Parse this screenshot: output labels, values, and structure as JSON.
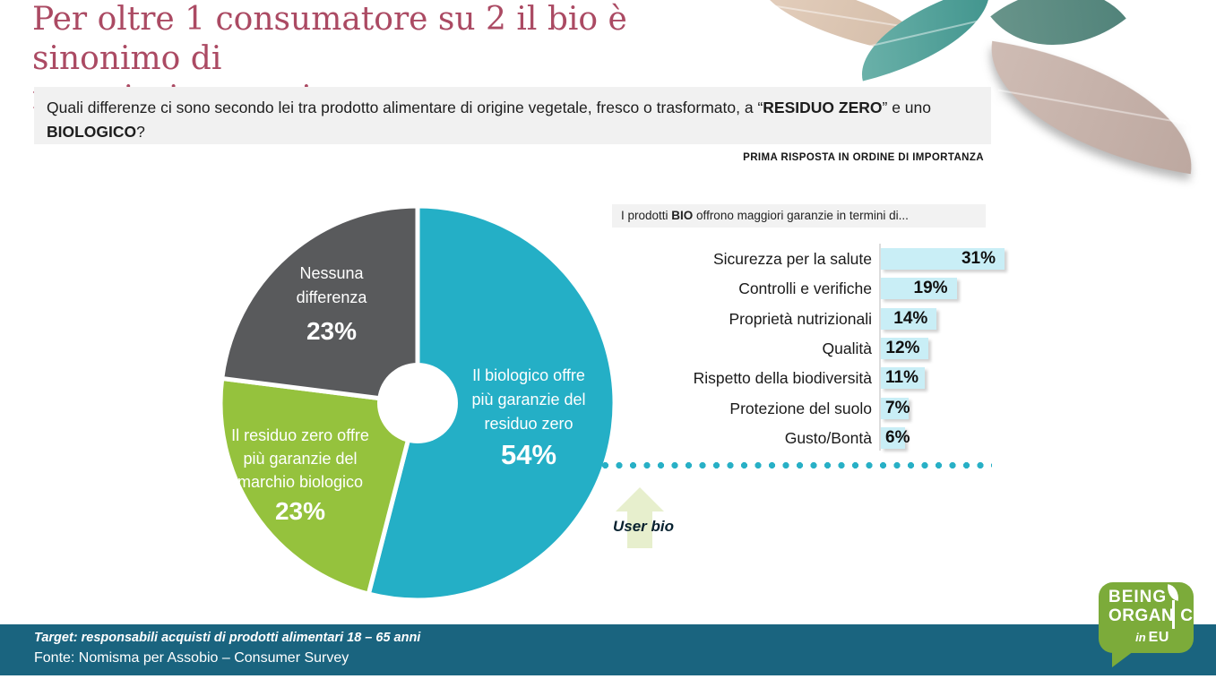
{
  "header": {
    "title_line1": "Per oltre 1 consumatore su 2 il  bio è sinonimo di",
    "title_line2": "maggiori garanzie",
    "question_part1": "Quali differenze ci sono secondo lei tra prodotto alimentare di origine vegetale, fresco o trasformato, a “",
    "question_bold1": "RESIDUO ZERO",
    "question_part2": "” e uno ",
    "question_bold2": "BIOLOGICO",
    "question_part3": "?",
    "note": "PRIMA RISPOSTA IN ORDINE DI IMPORTANZA"
  },
  "chart_data": [
    {
      "type": "pie",
      "subtype": "donut",
      "start_angle_deg": 0,
      "direction": "clockwise",
      "slices": [
        {
          "label": "Il biologico offre più garanzie del residuo zero",
          "value": 54,
          "color": "#24afc6"
        },
        {
          "label": "Il residuo zero offre più garanzie del marchio biologico",
          "value": 23,
          "color": "#95c23d"
        },
        {
          "label": "Nessuna differenza",
          "value": 23,
          "color": "#595a5c"
        }
      ]
    },
    {
      "type": "bar",
      "orientation": "horizontal",
      "title": "I prodotti BIO offrono maggiori garanzie in termini di...",
      "categories": [
        "Sicurezza per la salute",
        "Controlli e verifiche",
        "Proprietà nutrizionali",
        "Qualità",
        "Rispetto della biodiversità",
        "Protezione del suolo",
        "Gusto/Bontà"
      ],
      "values": [
        31,
        19,
        14,
        12,
        11,
        7,
        6
      ],
      "unit": "%",
      "bar_color": "#c9eef6",
      "xlim": [
        0,
        35
      ],
      "grid": false,
      "legend": false
    }
  ],
  "pie_display": {
    "teal": {
      "lines": [
        "Il biologico offre",
        "più garanzie del",
        "residuo zero"
      ],
      "pct": "54%"
    },
    "gray": {
      "lines": [
        "Nessuna",
        "differenza"
      ],
      "pct": "23%"
    },
    "green": {
      "lines": [
        "Il residuo zero offre",
        "più garanzie del",
        "marchio biologico"
      ],
      "pct": "23%"
    }
  },
  "bio_panel": {
    "header_prefix": "I prodotti ",
    "header_bold": "BIO",
    "header_suffix": " offrono maggiori garanzie in termini di...",
    "user_bio_label": "User bio"
  },
  "footer": {
    "target": "Target: responsabili acquisti di prodotti alimentari 18 – 65 anni",
    "source": "Fonte: Nomisma per Assobio – Consumer Survey",
    "band_color": "#1a647f"
  },
  "logo": {
    "line1": "BEING",
    "line2_part1": "ORGAN",
    "line2_part2": "C",
    "line3_in": "in",
    "line3_eu": "EU",
    "bubble_color": "#7cab3a"
  },
  "colors": {
    "title": "#ab4a63",
    "pie_teal": "#24afc6",
    "pie_green": "#95c23d",
    "pie_gray": "#595a5c",
    "bar_fill": "#c9eef6",
    "dotted_line": "#28b0c6",
    "arrow_fill": "#e7efcd"
  }
}
